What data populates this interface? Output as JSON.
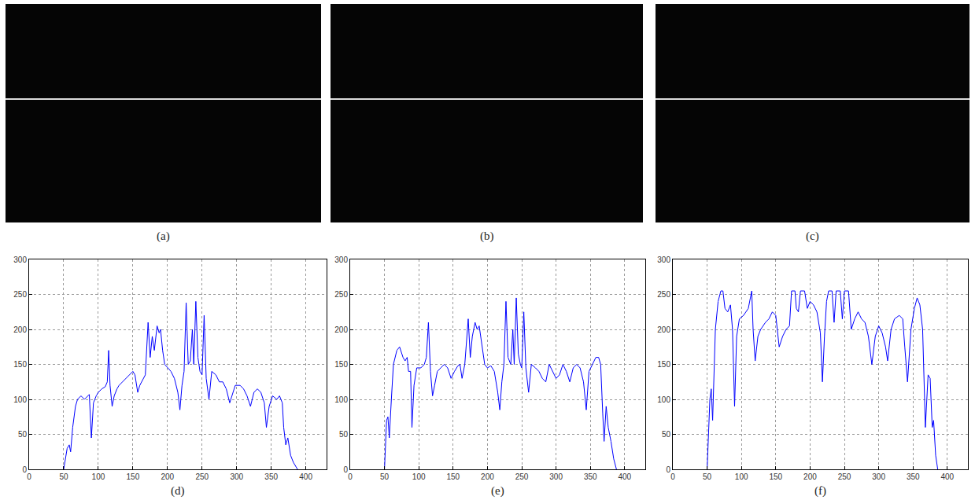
{
  "images": [
    {
      "caption": "(a)"
    },
    {
      "caption": "(b)"
    },
    {
      "caption": "(c)"
    }
  ],
  "chart_data": [
    {
      "type": "line",
      "title": "(d)",
      "color": "#0000ff",
      "grid": true,
      "xlim": [
        0,
        430
      ],
      "xticks": [
        0,
        50,
        100,
        150,
        200,
        250,
        300,
        350,
        400
      ],
      "ylim": [
        0,
        300
      ],
      "yticks": [
        0,
        50,
        100,
        150,
        200,
        250,
        300
      ],
      "x": [
        50,
        55,
        58,
        60,
        63,
        67,
        70,
        75,
        80,
        85,
        87,
        90,
        93,
        97,
        100,
        105,
        110,
        113,
        115,
        117,
        120,
        123,
        127,
        130,
        135,
        140,
        145,
        150,
        153,
        157,
        160,
        165,
        168,
        172,
        175,
        178,
        181,
        185,
        188,
        190,
        193,
        196,
        200,
        205,
        210,
        215,
        218,
        221,
        224,
        227,
        230,
        233,
        236,
        238,
        241,
        244,
        247,
        250,
        253,
        256,
        260,
        264,
        270,
        275,
        280,
        285,
        290,
        293,
        298,
        305,
        310,
        315,
        320,
        325,
        330,
        335,
        340,
        343,
        347,
        352,
        358,
        362,
        366,
        368,
        371,
        374,
        378,
        382,
        388
      ],
      "values": [
        0,
        30,
        35,
        25,
        60,
        90,
        100,
        105,
        100,
        105,
        107,
        45,
        95,
        105,
        110,
        115,
        118,
        125,
        170,
        120,
        90,
        105,
        115,
        120,
        125,
        130,
        135,
        140,
        135,
        110,
        120,
        130,
        135,
        210,
        160,
        190,
        170,
        205,
        195,
        200,
        170,
        150,
        145,
        140,
        130,
        110,
        85,
        120,
        140,
        238,
        150,
        155,
        200,
        150,
        240,
        160,
        140,
        135,
        220,
        130,
        100,
        140,
        135,
        125,
        125,
        115,
        95,
        105,
        120,
        120,
        115,
        105,
        90,
        110,
        115,
        110,
        95,
        60,
        90,
        105,
        100,
        105,
        95,
        60,
        35,
        45,
        20,
        10,
        0
      ]
    },
    {
      "type": "line",
      "title": "(e)",
      "color": "#0000ff",
      "grid": true,
      "xlim": [
        0,
        430
      ],
      "xticks": [
        0,
        50,
        100,
        150,
        200,
        250,
        300,
        350,
        400
      ],
      "ylim": [
        0,
        300
      ],
      "yticks": [
        0,
        50,
        100,
        150,
        200,
        250,
        300
      ],
      "x": [
        50,
        53,
        55,
        57,
        60,
        63,
        68,
        72,
        77,
        80,
        83,
        85,
        88,
        90,
        93,
        97,
        103,
        108,
        111,
        114,
        117,
        120,
        123,
        127,
        132,
        137,
        142,
        147,
        152,
        157,
        160,
        163,
        167,
        172,
        175,
        178,
        182,
        185,
        188,
        192,
        196,
        200,
        205,
        210,
        215,
        218,
        221,
        224,
        227,
        230,
        234,
        237,
        239,
        242,
        245,
        248,
        250,
        253,
        256,
        260,
        264,
        270,
        275,
        280,
        285,
        290,
        295,
        300,
        305,
        310,
        315,
        320,
        325,
        330,
        335,
        340,
        344,
        348,
        353,
        358,
        362,
        365,
        368,
        370,
        373,
        376,
        380,
        384,
        388
      ],
      "values": [
        0,
        70,
        75,
        45,
        100,
        150,
        170,
        175,
        160,
        155,
        160,
        140,
        140,
        60,
        120,
        145,
        145,
        150,
        160,
        210,
        140,
        105,
        120,
        140,
        145,
        150,
        145,
        130,
        140,
        148,
        150,
        130,
        150,
        215,
        160,
        190,
        210,
        200,
        205,
        180,
        150,
        145,
        148,
        140,
        110,
        85,
        125,
        150,
        240,
        160,
        150,
        200,
        150,
        245,
        165,
        150,
        145,
        225,
        145,
        110,
        150,
        145,
        140,
        130,
        125,
        150,
        140,
        130,
        135,
        150,
        140,
        125,
        145,
        150,
        145,
        125,
        85,
        140,
        150,
        160,
        160,
        150,
        80,
        40,
        90,
        60,
        40,
        15,
        0
      ]
    },
    {
      "type": "line",
      "title": "(f)",
      "color": "#0000ff",
      "grid": true,
      "xlim": [
        0,
        430
      ],
      "xticks": [
        0,
        50,
        100,
        150,
        200,
        250,
        300,
        350,
        400
      ],
      "ylim": [
        0,
        300
      ],
      "yticks": [
        0,
        50,
        100,
        150,
        200,
        250,
        300
      ],
      "x": [
        50,
        54,
        56,
        58,
        62,
        66,
        70,
        73,
        76,
        80,
        84,
        87,
        90,
        93,
        97,
        103,
        110,
        115,
        117,
        120,
        124,
        128,
        135,
        140,
        145,
        150,
        155,
        160,
        165,
        170,
        173,
        178,
        180,
        183,
        186,
        192,
        196,
        200,
        205,
        210,
        215,
        218,
        221,
        224,
        227,
        232,
        235,
        238,
        244,
        247,
        250,
        256,
        260,
        265,
        270,
        275,
        280,
        285,
        290,
        295,
        300,
        305,
        310,
        313,
        318,
        323,
        330,
        335,
        338,
        342,
        347,
        352,
        356,
        360,
        364,
        366,
        368,
        372,
        375,
        378,
        380,
        383,
        386
      ],
      "values": [
        0,
        100,
        115,
        70,
        200,
        240,
        255,
        255,
        230,
        225,
        235,
        200,
        90,
        190,
        215,
        220,
        230,
        255,
        200,
        155,
        190,
        200,
        210,
        215,
        225,
        220,
        175,
        190,
        200,
        205,
        255,
        255,
        230,
        225,
        255,
        255,
        230,
        240,
        235,
        225,
        195,
        125,
        190,
        240,
        255,
        255,
        210,
        255,
        255,
        215,
        255,
        255,
        200,
        215,
        225,
        215,
        210,
        190,
        150,
        190,
        205,
        195,
        175,
        155,
        200,
        215,
        220,
        215,
        175,
        125,
        200,
        230,
        245,
        235,
        200,
        120,
        60,
        135,
        130,
        60,
        70,
        20,
        0
      ]
    }
  ]
}
